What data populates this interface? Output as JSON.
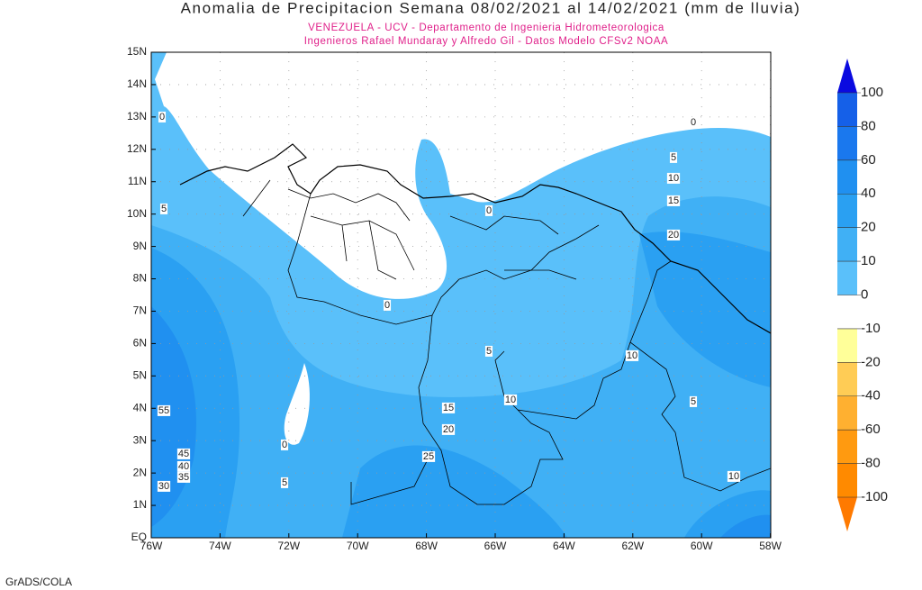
{
  "title": "Anomalia de Precipitacion Semana 08/02/2021 al 14/02/2021 (mm de lluvia)",
  "subtitle": [
    "VENEZUELA - UCV - Departamento de Ingenieria Hidrometeorologica",
    "Ingenieros Rafael Mundaray y Alfredo Gil - Datos Modelo CFSv2 NOAA"
  ],
  "map": {
    "lat_labels": [
      "15N",
      "14N",
      "13N",
      "12N",
      "11N",
      "10N",
      "9N",
      "8N",
      "7N",
      "6N",
      "5N",
      "4N",
      "3N",
      "2N",
      "1N",
      "EQ"
    ],
    "lon_labels": [
      "76W",
      "74W",
      "72W",
      "70W",
      "68W",
      "66W",
      "64W",
      "62W",
      "60W",
      "58W"
    ],
    "contour_labels": [
      0,
      0,
      5,
      10,
      15,
      20,
      5,
      0,
      0,
      5,
      10,
      10,
      5,
      55,
      15,
      20,
      0,
      45,
      40,
      35,
      25,
      30,
      5,
      10
    ]
  },
  "colorbar": {
    "levels": [
      100,
      80,
      60,
      40,
      20,
      10,
      0,
      -10,
      -20,
      -40,
      -60,
      -80,
      -100
    ],
    "colors": [
      "#0a0ae0",
      "#1560e8",
      "#1a78ee",
      "#2090f0",
      "#2aa0f2",
      "#40b0f5",
      "#5ac0fa",
      "#ffffff",
      "#ffff99",
      "#ffcc55",
      "#ffb030",
      "#ff9a10",
      "#ff8a00",
      "#ff7a00"
    ]
  },
  "credit": "GrADS/COLA"
}
